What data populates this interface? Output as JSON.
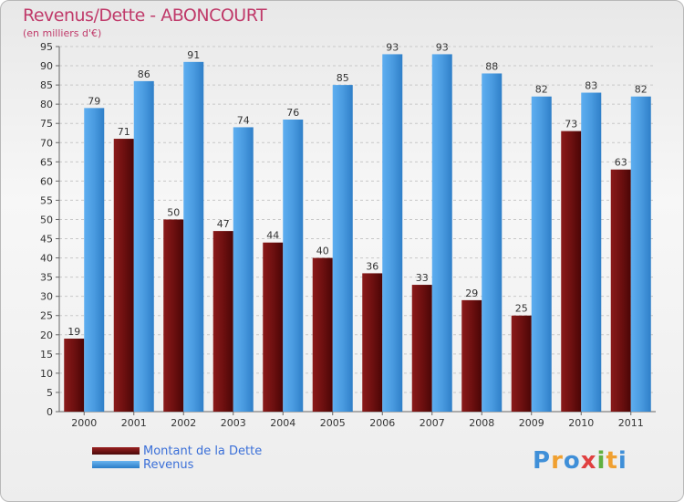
{
  "title": "Revenus/Dette - ABONCOURT",
  "subtitle": "(en milliers d'€)",
  "chart_data": {
    "type": "bar",
    "title": "Revenus/Dette - ABONCOURT",
    "ylabel": "(en milliers d'€)",
    "xlabel": "",
    "ylim": [
      0,
      95
    ],
    "ytick_step": 5,
    "grid": true,
    "legend_position": "bottom-left",
    "categories": [
      "2000",
      "2001",
      "2002",
      "2003",
      "2004",
      "2005",
      "2006",
      "2007",
      "2008",
      "2009",
      "2010",
      "2011"
    ],
    "series": [
      {
        "name": "Montant de la Dette",
        "color": "#7a1414",
        "values": [
          19,
          71,
          50,
          47,
          44,
          40,
          36,
          33,
          29,
          25,
          73,
          63
        ]
      },
      {
        "name": "Revenus",
        "color": "#4a9be0",
        "values": [
          79,
          86,
          91,
          74,
          76,
          85,
          93,
          93,
          88,
          82,
          83,
          82
        ]
      }
    ]
  },
  "legend": {
    "debt_label": "Montant de la Dette",
    "revenue_label": "Revenus"
  },
  "logo": {
    "letters": [
      "P",
      "r",
      "o",
      "x",
      "i",
      "t",
      "i"
    ],
    "colors": [
      "#3f8fd8",
      "#f0a030",
      "#3f8fd8",
      "#e04040",
      "#60b040",
      "#f0a030",
      "#3f8fd8"
    ]
  }
}
